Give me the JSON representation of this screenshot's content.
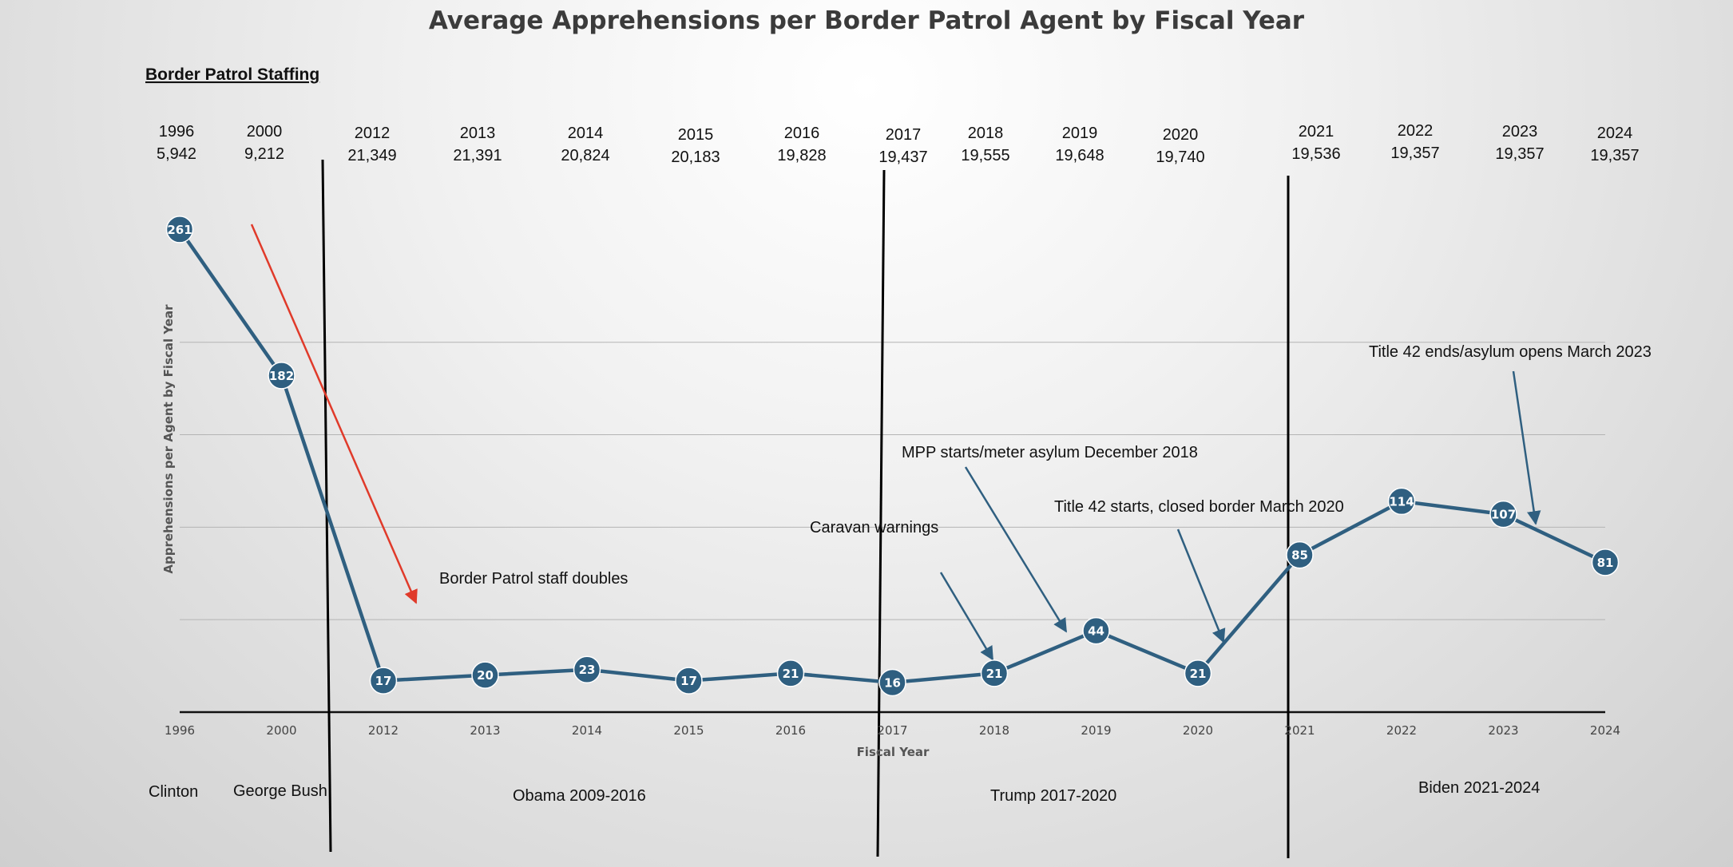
{
  "chart_data": {
    "type": "line",
    "title": "Average Apprehensions per Border Patrol Agent by Fiscal Year",
    "xlabel": "Fiscal Year",
    "ylabel": "Apprehensions per Agent by Fiscal Year",
    "ylim": [
      0,
      275
    ],
    "grid": true,
    "categories": [
      "1996",
      "2000",
      "2012",
      "2013",
      "2014",
      "2015",
      "2016",
      "2017",
      "2018",
      "2019",
      "2020",
      "2021",
      "2022",
      "2023",
      "2024"
    ],
    "series": [
      {
        "values": [
          261,
          182,
          17,
          20,
          23,
          17,
          21,
          16,
          21,
          44,
          21,
          85,
          114,
          107,
          81
        ]
      }
    ],
    "data_labels": [
      "261",
      "182",
      "17",
      "20",
      "23",
      "17",
      "21",
      "16",
      "21",
      "44",
      "21",
      "85",
      "114",
      "107",
      "81"
    ],
    "colors": {
      "line": "#2f5f80",
      "marker": "#2f5f80",
      "arrow_red": "#e03a2a",
      "arrow_blue": "#2f5f80"
    }
  },
  "staffing": {
    "header": "Border Patrol Staffing",
    "entries": [
      {
        "year": "1996",
        "value": "5,942"
      },
      {
        "year": "2000",
        "value": "9,212"
      },
      {
        "year": "2012",
        "value": "21,349"
      },
      {
        "year": "2013",
        "value": "21,391"
      },
      {
        "year": "2014",
        "value": "20,824"
      },
      {
        "year": "2015",
        "value": "20,183"
      },
      {
        "year": "2016",
        "value": "19,828"
      },
      {
        "year": "2017",
        "value": "19,437"
      },
      {
        "year": "2018",
        "value": "19,555"
      },
      {
        "year": "2019",
        "value": "19,648"
      },
      {
        "year": "2020",
        "value": "19,740"
      },
      {
        "year": "2021",
        "value": "19,536"
      },
      {
        "year": "2022",
        "value": "19,357"
      },
      {
        "year": "2023",
        "value": "19,357"
      },
      {
        "year": "2024",
        "value": "19,357"
      }
    ]
  },
  "annotations": {
    "staff_doubles": "Border Patrol staff doubles",
    "caravan": "Caravan warnings",
    "mpp": "MPP starts/meter asylum December 2018",
    "title42_start": "Title 42 starts, closed border March 2020",
    "title42_end": "Title 42 ends/asylum opens March 2023"
  },
  "eras": {
    "clinton": "Clinton",
    "bush": "George Bush",
    "obama": "Obama 2009-2016",
    "trump": "Trump 2017-2020",
    "biden": "Biden 2021-2024"
  }
}
